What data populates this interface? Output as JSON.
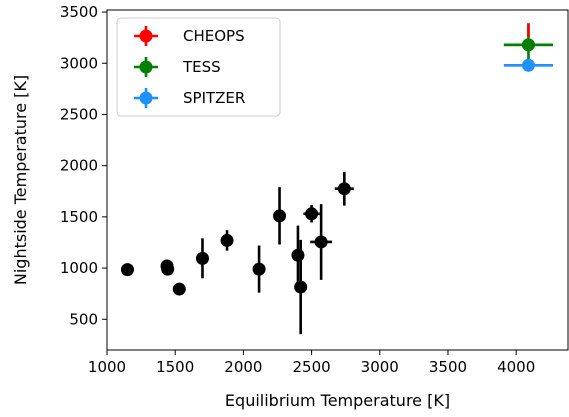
{
  "chart_data": {
    "type": "scatter",
    "title": "",
    "xlabel": "Equilibrium Temperature [K]",
    "ylabel": "Nightside Temperature [K]",
    "xlim": [
      1000,
      4380
    ],
    "ylim": [
      200,
      3520
    ],
    "xticks": [
      1000,
      1500,
      2000,
      2500,
      3000,
      3500,
      4000
    ],
    "yticks": [
      500,
      1000,
      1500,
      2000,
      2500,
      3000,
      3500
    ],
    "grid": false,
    "legend_position": "top-left",
    "legend": [
      {
        "label": "CHEOPS",
        "color": "#ff0000"
      },
      {
        "label": "TESS",
        "color": "#008000"
      },
      {
        "label": "SPITZER",
        "color": "#1e90ff"
      }
    ],
    "series": [
      {
        "color": "#000000",
        "points": [
          {
            "x": 1150,
            "y": 985,
            "xerr": 30,
            "yerr": 35
          },
          {
            "x": 1440,
            "y": 1020,
            "xerr": 40,
            "yerr": 55
          },
          {
            "x": 1445,
            "y": 990,
            "xerr": 35,
            "yerr": 35
          },
          {
            "x": 1530,
            "y": 795,
            "xerr": 30,
            "yerr": 35
          },
          {
            "x": 1700,
            "y": 1095,
            "xerr": 40,
            "yerr": 195
          },
          {
            "x": 1880,
            "y": 1270,
            "xerr": 40,
            "yerr": 100
          },
          {
            "x": 2115,
            "y": 990,
            "xerr": 40,
            "yerr": 230
          },
          {
            "x": 2265,
            "y": 1510,
            "xerr": 40,
            "yerr": 280
          },
          {
            "x": 2400,
            "y": 1125,
            "xerr": 40,
            "yerr": 290
          },
          {
            "x": 2420,
            "y": 815,
            "xerr": 40,
            "yerr": 460
          },
          {
            "x": 2500,
            "y": 1530,
            "xerr": 60,
            "yerr": 85
          },
          {
            "x": 2570,
            "y": 1255,
            "xerr": 80,
            "yerr": 370
          },
          {
            "x": 2740,
            "y": 1775,
            "xerr": 70,
            "yerr": 165
          }
        ]
      },
      {
        "name": "TESS",
        "color": "#008000",
        "points": [
          {
            "x": 4090,
            "y": 3180,
            "xerr": 180,
            "yerr": 210
          }
        ]
      },
      {
        "name": "SPITZER",
        "color": "#1e90ff",
        "points": [
          {
            "x": 4090,
            "y": 2980,
            "xerr": 180,
            "yerr": 30
          }
        ]
      }
    ]
  }
}
